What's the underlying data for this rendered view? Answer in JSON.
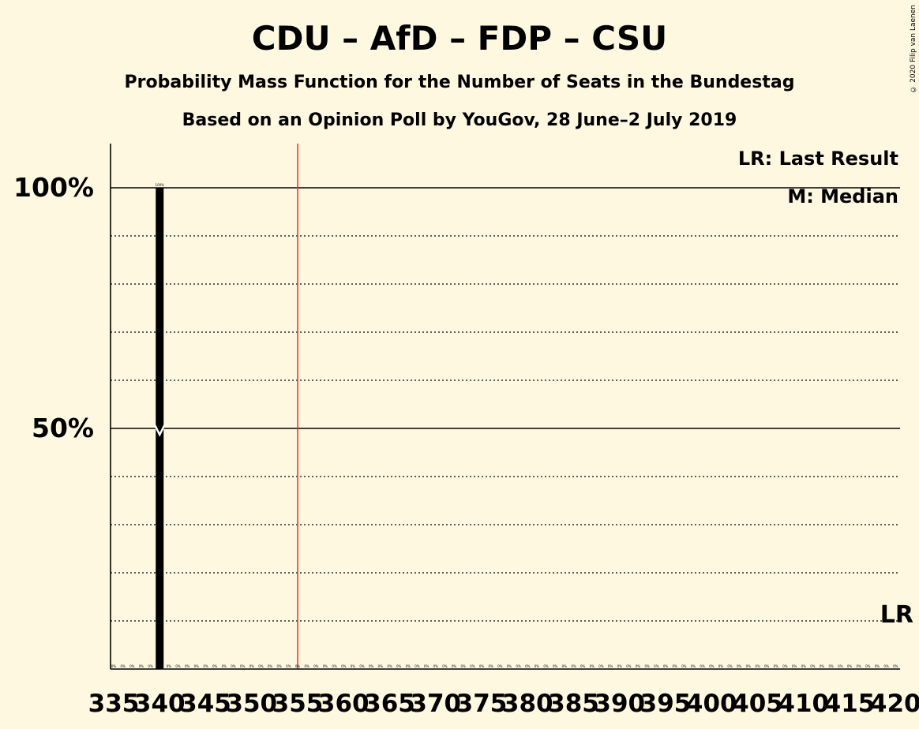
{
  "title": "CDU – AfD – FDP – CSU",
  "subtitle": "Probability Mass Function for the Number of Seats in the Bundestag",
  "source_line": "Based on an Opinion Poll by YouGov, 28 June–2 July 2019",
  "copyright": "© 2020 Filip van Laenen",
  "legend": {
    "last_result": "LR: Last Result",
    "median": "M: Median"
  },
  "lr_marker_label": "LR",
  "colors": {
    "background": "#FFF8E1",
    "bar": "#000000",
    "last_result_line": "#E53935",
    "median_marker": "#FFFFFF"
  },
  "chart_data": {
    "type": "bar",
    "xlim": [
      335,
      420
    ],
    "x_ticks": [
      335,
      340,
      345,
      350,
      355,
      360,
      365,
      370,
      375,
      380,
      385,
      390,
      395,
      400,
      405,
      410,
      415,
      420
    ],
    "x_tick_labels": [
      "335",
      "340",
      "345",
      "350",
      "355",
      "360",
      "365",
      "370",
      "375",
      "380",
      "385",
      "390",
      "395",
      "400",
      "405",
      "410",
      "415",
      "420"
    ],
    "ylim": [
      0,
      100
    ],
    "y_ticks": [
      50,
      100
    ],
    "y_tick_labels": [
      "50%",
      "100%"
    ],
    "grid": "dotted every 10%, solid at 50% and 100%",
    "x": [
      340
    ],
    "values": [
      100
    ],
    "data_labels": [
      "100%"
    ],
    "zero_label": "0%",
    "median": 340,
    "last_result": 355
  }
}
